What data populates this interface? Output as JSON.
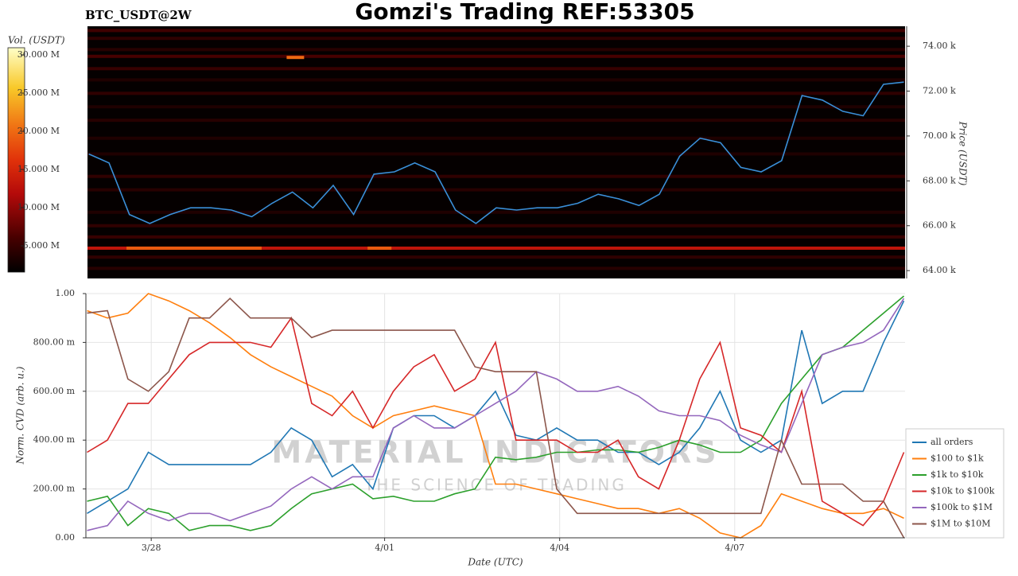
{
  "chart_data": [
    {
      "type": "heatmap",
      "title": "Gomzi's Trading REF:53305",
      "subtitle": "BTC_USDT@2W",
      "y_label": "Price (USDT)",
      "colorbar_label": "Vol. (USDT)",
      "x": [
        26.9,
        27.25,
        27.6,
        27.95,
        28.3,
        28.65,
        29.0,
        29.35,
        29.7,
        30.05,
        30.4,
        30.75,
        31.1,
        31.45,
        31.8,
        32.15,
        32.5,
        32.85,
        33.2,
        33.55,
        33.9,
        34.25,
        34.6,
        34.95,
        35.3,
        35.65,
        36.0,
        36.35,
        36.7,
        37.05,
        37.4,
        37.75,
        38.1,
        38.45,
        38.8,
        39.15,
        39.5,
        39.85,
        40.2,
        40.55,
        40.9
      ],
      "xlim": [
        26.88,
        40.92
      ],
      "ylim": [
        63650,
        74890
      ],
      "yticks": [
        {
          "value": 64000,
          "label": "64.00 k"
        },
        {
          "value": 66000,
          "label": "66.00 k"
        },
        {
          "value": 68000,
          "label": "68.00 k"
        },
        {
          "value": 70000,
          "label": "70.00 k"
        },
        {
          "value": 72000,
          "label": "72.00 k"
        },
        {
          "value": 74000,
          "label": "74.00 k"
        }
      ],
      "clim": [
        1560000,
        30940000
      ],
      "cticks": [
        {
          "value": 5000000,
          "label": "5.000 M"
        },
        {
          "value": 10000000,
          "label": "10.000 M"
        },
        {
          "value": 15000000,
          "label": "15.000 M"
        },
        {
          "value": 20000000,
          "label": "20.000 M"
        },
        {
          "value": 25000000,
          "label": "25.000 M"
        },
        {
          "value": 30000000,
          "label": "30.000 M"
        }
      ],
      "heatmap": {
        "prices": [
          74700,
          74350,
          73850,
          73550,
          73000,
          72500,
          71900,
          71300,
          70700,
          69900,
          69200,
          68200,
          67600,
          66600,
          66000,
          65500,
          65000,
          64600,
          64100
        ],
        "volumes": [
          5500000,
          4500000,
          4000000,
          6000000,
          5000000,
          3500000,
          4500000,
          3500000,
          4000000,
          3500000,
          3500000,
          4500000,
          4000000,
          3500000,
          4500000,
          5000000,
          13000000,
          4500000,
          4000000
        ]
      },
      "hotspots": {
        "prices": [
          73500,
          65000,
          65000
        ],
        "x_start": [
          30.3,
          27.55,
          31.69
        ],
        "x_end": [
          30.6,
          29.87,
          32.1
        ],
        "volumes": [
          20000000,
          19000000,
          19000000
        ]
      },
      "series": [
        {
          "color": "#3a8fd8",
          "values": [
            69200,
            68800,
            66500,
            66100,
            66500,
            66800,
            66800,
            66700,
            66400,
            67000,
            67500,
            66800,
            67800,
            66500,
            68300,
            68400,
            68800,
            68400,
            66700,
            66100,
            66800,
            66700,
            66800,
            66800,
            67000,
            67400,
            67200,
            66900,
            67400,
            69100,
            69900,
            69700,
            68600,
            68400,
            68900,
            71800,
            71600,
            71100,
            70900,
            72300,
            72400
          ]
        }
      ]
    },
    {
      "type": "line",
      "x_label": "Date (UTC)",
      "y_label": "Norm. CVD (arb. u.)",
      "x": [
        26.9,
        27.25,
        27.6,
        27.95,
        28.3,
        28.65,
        29.0,
        29.35,
        29.7,
        30.05,
        30.4,
        30.75,
        31.1,
        31.45,
        31.8,
        32.15,
        32.5,
        32.85,
        33.2,
        33.55,
        33.9,
        34.25,
        34.6,
        34.95,
        35.3,
        35.65,
        36.0,
        36.35,
        36.7,
        37.05,
        37.4,
        37.75,
        38.1,
        38.45,
        38.8,
        39.15,
        39.5,
        39.85,
        40.2,
        40.55,
        40.9
      ],
      "xlim": [
        26.88,
        40.92
      ],
      "xticks": [
        {
          "value": 28,
          "label": "3/28"
        },
        {
          "value": 32,
          "label": "4/01"
        },
        {
          "value": 35,
          "label": "4/04"
        },
        {
          "value": 38,
          "label": "4/07"
        }
      ],
      "ylim": [
        0,
        1
      ],
      "yticks": [
        {
          "value": 0,
          "label": "0.00"
        },
        {
          "value": 0.2,
          "label": "200.00 m"
        },
        {
          "value": 0.4,
          "label": "400.00 m"
        },
        {
          "value": 0.6,
          "label": "600.00 m"
        },
        {
          "value": 0.8,
          "label": "800.00 m"
        },
        {
          "value": 1,
          "label": "1.00"
        }
      ],
      "grid": true,
      "legend": "right",
      "annotations": [
        "MATERIAL INDICATORS",
        "THE SCIENCE OF TRADING"
      ],
      "series": [
        {
          "name": "all orders",
          "color": "#1f77b4",
          "values": [
            0.1,
            0.15,
            0.2,
            0.35,
            0.3,
            0.3,
            0.3,
            0.3,
            0.3,
            0.35,
            0.45,
            0.4,
            0.25,
            0.3,
            0.2,
            0.45,
            0.5,
            0.5,
            0.45,
            0.5,
            0.6,
            0.42,
            0.4,
            0.45,
            0.4,
            0.4,
            0.35,
            0.35,
            0.3,
            0.35,
            0.45,
            0.6,
            0.4,
            0.35,
            0.4,
            0.85,
            0.55,
            0.6,
            0.6,
            0.8,
            0.97
          ]
        },
        {
          "name": "$100 to $1k",
          "color": "#ff7f0e",
          "values": [
            0.93,
            0.9,
            0.92,
            1.0,
            0.97,
            0.93,
            0.88,
            0.82,
            0.75,
            0.7,
            0.66,
            0.62,
            0.58,
            0.5,
            0.45,
            0.5,
            0.52,
            0.54,
            0.52,
            0.5,
            0.22,
            0.22,
            0.2,
            0.18,
            0.16,
            0.14,
            0.12,
            0.12,
            0.1,
            0.12,
            0.08,
            0.02,
            0.0,
            0.05,
            0.18,
            0.15,
            0.12,
            0.1,
            0.1,
            0.12,
            0.08
          ]
        },
        {
          "name": "$1k to $10k",
          "color": "#2ca02c",
          "values": [
            0.15,
            0.17,
            0.05,
            0.12,
            0.1,
            0.03,
            0.05,
            0.05,
            0.03,
            0.05,
            0.12,
            0.18,
            0.2,
            0.22,
            0.16,
            0.17,
            0.15,
            0.15,
            0.18,
            0.2,
            0.33,
            0.32,
            0.33,
            0.35,
            0.35,
            0.36,
            0.36,
            0.35,
            0.37,
            0.4,
            0.38,
            0.35,
            0.35,
            0.4,
            0.55,
            0.65,
            0.75,
            0.78,
            0.85,
            0.92,
            0.99
          ]
        },
        {
          "name": "$10k to $100k",
          "color": "#d62728",
          "values": [
            0.35,
            0.4,
            0.55,
            0.55,
            0.65,
            0.75,
            0.8,
            0.8,
            0.8,
            0.78,
            0.9,
            0.55,
            0.5,
            0.6,
            0.45,
            0.6,
            0.7,
            0.75,
            0.6,
            0.65,
            0.8,
            0.4,
            0.4,
            0.4,
            0.35,
            0.35,
            0.4,
            0.25,
            0.2,
            0.4,
            0.65,
            0.8,
            0.45,
            0.42,
            0.35,
            0.6,
            0.15,
            0.1,
            0.05,
            0.15,
            0.35
          ]
        },
        {
          "name": "$100k to $1M",
          "color": "#9467bd",
          "values": [
            0.03,
            0.05,
            0.15,
            0.1,
            0.07,
            0.1,
            0.1,
            0.07,
            0.1,
            0.13,
            0.2,
            0.25,
            0.2,
            0.25,
            0.25,
            0.45,
            0.5,
            0.45,
            0.45,
            0.5,
            0.55,
            0.6,
            0.68,
            0.65,
            0.6,
            0.6,
            0.62,
            0.58,
            0.52,
            0.5,
            0.5,
            0.48,
            0.42,
            0.38,
            0.35,
            0.55,
            0.75,
            0.78,
            0.8,
            0.85,
            0.98
          ]
        },
        {
          "name": "$1M to $10M",
          "color": "#8c564b",
          "values": [
            0.92,
            0.93,
            0.65,
            0.6,
            0.68,
            0.9,
            0.9,
            0.98,
            0.9,
            0.9,
            0.9,
            0.82,
            0.85,
            0.85,
            0.85,
            0.85,
            0.85,
            0.85,
            0.85,
            0.7,
            0.68,
            0.68,
            0.68,
            0.2,
            0.1,
            0.1,
            0.1,
            0.1,
            0.1,
            0.1,
            0.1,
            0.1,
            0.1,
            0.1,
            0.4,
            0.22,
            0.22,
            0.22,
            0.15,
            0.15,
            0.0
          ]
        }
      ]
    }
  ]
}
